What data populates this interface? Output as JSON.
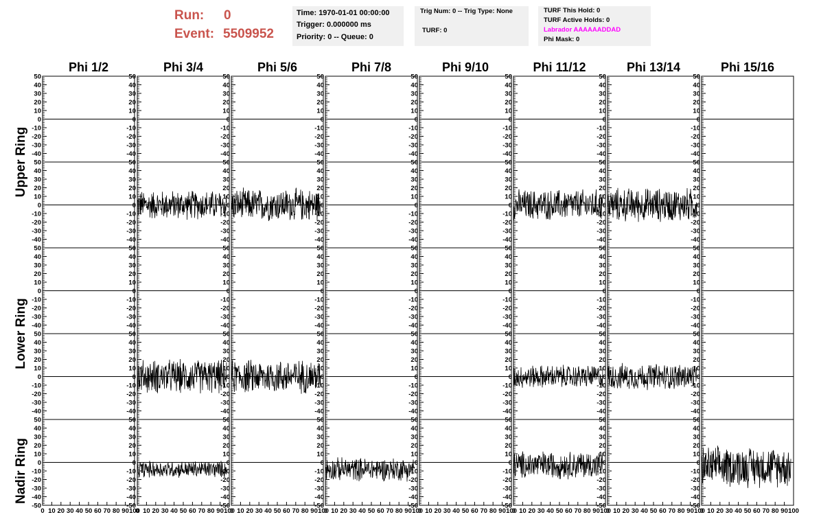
{
  "header": {
    "run_label": "Run:",
    "run_value": "0",
    "event_label": "Event:",
    "event_value": "5509952",
    "time": "Time: 1970-01-01 00:00:00",
    "trigger": "Trigger: 0.000000 ms",
    "priority": "Priority: 0 -- Queue: 0",
    "trig_num": "Trig Num: 0 -- Trig Type: None",
    "turf": "TURF: 0",
    "turf_this_hold": "TURF This Hold: 0",
    "turf_active_holds": "TURF Active Holds: 0",
    "labrador": "Labrador AAAAAADDAD",
    "phi_mask": "Phi Mask: 0",
    "run_color": "#c9544d",
    "labrador_color": "#ff00ff"
  },
  "chart_data": {
    "type": "line",
    "columns": [
      "Phi 1/2",
      "Phi 3/4",
      "Phi 5/6",
      "Phi 7/8",
      "Phi 9/10",
      "Phi 11/12",
      "Phi 13/14",
      "Phi 15/16"
    ],
    "ring_labels": [
      "Upper Ring",
      "Lower Ring",
      "Nadir Ring"
    ],
    "ylim": [
      -50,
      50
    ],
    "xlim": [
      0,
      100
    ],
    "yticks": [
      50,
      40,
      30,
      20,
      10,
      0,
      -10,
      -20,
      -30,
      -40,
      -50
    ],
    "xticks": [
      0,
      10,
      20,
      30,
      40,
      50,
      60,
      70,
      80,
      90,
      100
    ],
    "tick_labels_y": [
      "50",
      "40",
      "30",
      "20",
      "10",
      "0",
      "-10",
      "-20",
      "-30",
      "-40",
      "-50"
    ],
    "tick_labels_x": [
      "0",
      "10",
      "20",
      "30",
      "40",
      "50",
      "60",
      "70",
      "80",
      "90",
      "100"
    ],
    "rows": [
      {
        "ring": "Upper Ring",
        "amplitudes": [
          0,
          0,
          0,
          0,
          0,
          0,
          0,
          0
        ]
      },
      {
        "ring": "Upper Ring",
        "amplitudes": [
          0,
          19,
          21,
          0,
          0,
          20,
          22,
          0
        ]
      },
      {
        "ring": "Lower Ring",
        "amplitudes": [
          0,
          0,
          0,
          0,
          0,
          0,
          0,
          0
        ]
      },
      {
        "ring": "Lower Ring",
        "amplitudes": [
          0,
          22,
          22,
          0,
          0,
          15,
          17,
          0
        ]
      },
      {
        "ring": "Nadir Ring",
        "amplitudes": [
          0,
          11,
          0,
          15,
          0,
          18,
          0,
          26
        ]
      }
    ],
    "row_offsets": [
      0,
      0,
      0,
      0,
      -8
    ],
    "row_offset_cols": [
      [],
      [],
      [],
      [],
      [
        1,
        2,
        3
      ]
    ],
    "trace_x_start": [
      0,
      0,
      0,
      0,
      0
    ],
    "trace_x_end": [
      0,
      97,
      97,
      97,
      97
    ]
  }
}
